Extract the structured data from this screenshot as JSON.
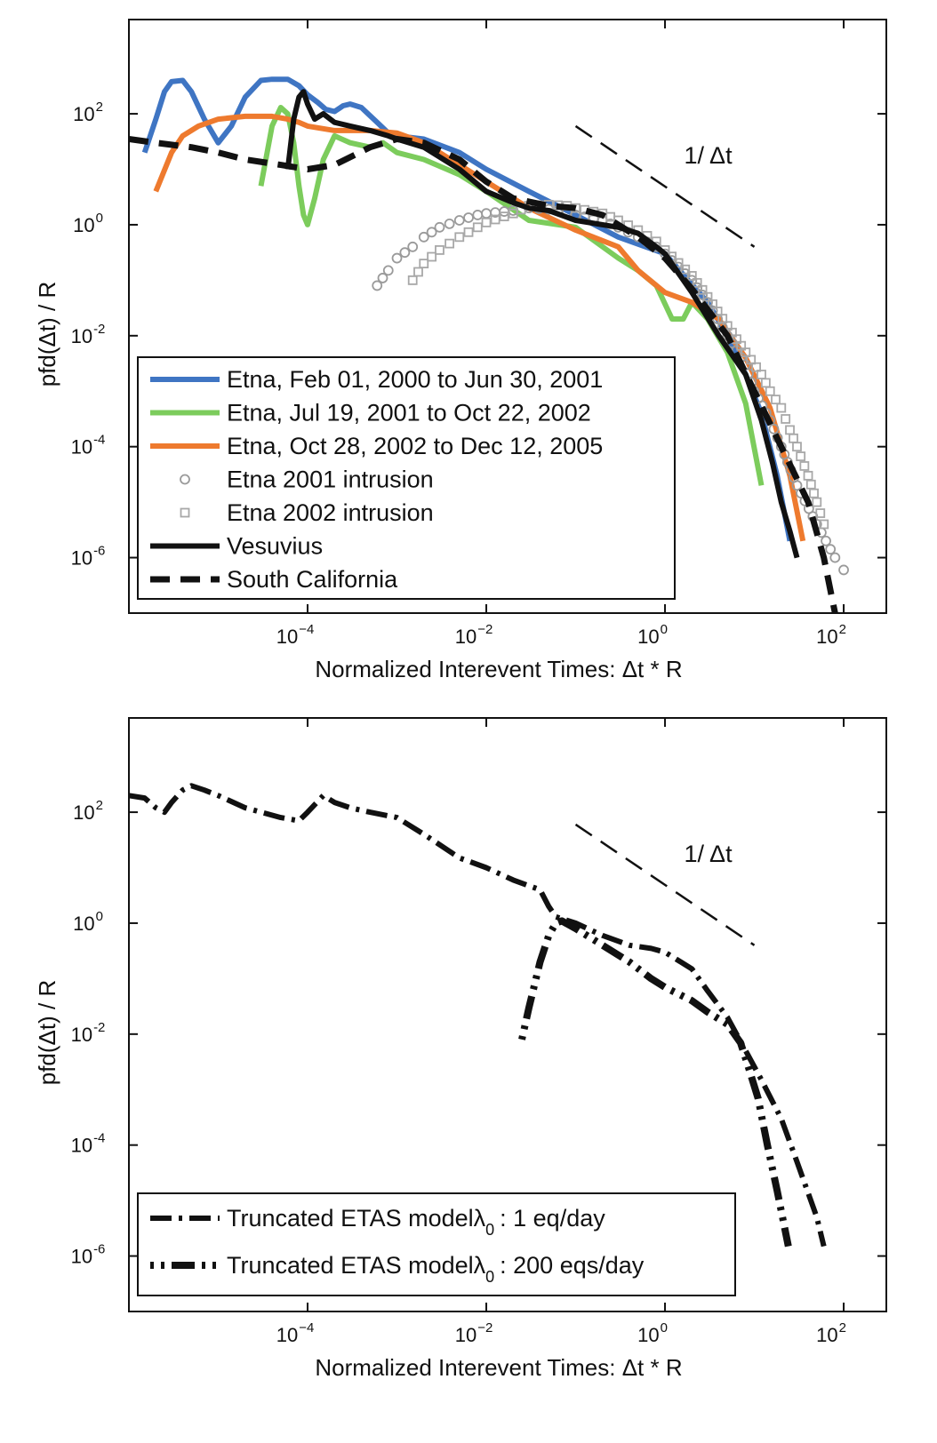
{
  "chart_data": [
    {
      "type": "line",
      "xscale": "log",
      "yscale": "log",
      "xlim": [
        1e-06,
        300
      ],
      "ylim": [
        1e-07,
        5000
      ],
      "xticks": [
        {
          "v": 0.0001,
          "base": "10",
          "exp": "−4"
        },
        {
          "v": 0.01,
          "base": "10",
          "exp": "−2"
        },
        {
          "v": 1,
          "base": "10",
          "exp": "0"
        },
        {
          "v": 100,
          "base": "10",
          "exp": "2"
        }
      ],
      "yticks": [
        {
          "v": 100,
          "base": "10",
          "exp": "2"
        },
        {
          "v": 1,
          "base": "10",
          "exp": "0"
        },
        {
          "v": 0.01,
          "base": "10",
          "exp": "-2"
        },
        {
          "v": 0.0001,
          "base": "10",
          "exp": "-4"
        },
        {
          "v": 1e-06,
          "base": "10",
          "exp": "-6"
        }
      ],
      "xlabel": "Normalized Interevent Times: Δt * R",
      "ylabel": "pfd(Δt) / R",
      "legend_position": "lower-left",
      "reference_line": {
        "label": "1/ Δt",
        "x": [
          0.1,
          10
        ],
        "y": [
          60,
          0.4
        ]
      },
      "series": [
        {
          "name": "Etna, Feb 01, 2000 to Jun 30, 2001",
          "color": "#3f75c3",
          "style": "solid",
          "width": 6,
          "x": [
            1.5e-06,
            2e-06,
            2.5e-06,
            3e-06,
            4e-06,
            5e-06,
            7e-06,
            1e-05,
            1.4e-05,
            2e-05,
            3e-05,
            4e-05,
            6e-05,
            8e-05,
            0.0001,
            0.00013,
            0.00016,
            0.0002,
            0.00025,
            0.0003,
            0.0004,
            0.0006,
            0.0008,
            0.001,
            0.002,
            0.005,
            0.01,
            0.03,
            0.1,
            0.3,
            1,
            3,
            5,
            8,
            12,
            18,
            25
          ],
          "y": [
            20,
            80,
            250,
            380,
            400,
            250,
            80,
            30,
            60,
            200,
            400,
            420,
            420,
            320,
            220,
            160,
            120,
            110,
            140,
            150,
            130,
            70,
            45,
            40,
            35,
            20,
            10,
            4,
            1.5,
            0.6,
            0.3,
            0.04,
            0.01,
            0.002,
            0.0004,
            3e-05,
            2e-06
          ]
        },
        {
          "name": "Etna, Jul 19, 2001 to Oct 22, 2002",
          "color": "#7ccc5c",
          "style": "solid",
          "width": 6,
          "x": [
            3e-05,
            4e-05,
            5e-05,
            6e-05,
            7e-05,
            8e-05,
            9e-05,
            0.0001,
            0.00012,
            0.00015,
            0.0002,
            0.0003,
            0.0005,
            0.0007,
            0.001,
            0.002,
            0.005,
            0.01,
            0.03,
            0.1,
            0.3,
            0.5,
            0.8,
            1.2,
            1.6,
            2,
            3,
            5,
            8,
            12
          ],
          "y": [
            5,
            60,
            130,
            100,
            30,
            5,
            1.5,
            1,
            3,
            15,
            40,
            30,
            25,
            30,
            20,
            15,
            8,
            4,
            1.2,
            0.9,
            0.25,
            0.15,
            0.08,
            0.02,
            0.02,
            0.04,
            0.02,
            0.005,
            0.0006,
            2e-05
          ]
        },
        {
          "name": "Etna, Oct 28, 2002 to Dec 12, 2005",
          "color": "#ee7a2e",
          "style": "solid",
          "width": 6,
          "x": [
            2e-06,
            3e-06,
            4e-06,
            6e-06,
            1e-05,
            2e-05,
            4e-05,
            6e-05,
            8e-05,
            0.0001,
            0.0002,
            0.0005,
            0.001,
            0.002,
            0.005,
            0.01,
            0.03,
            0.1,
            0.3,
            0.5,
            1,
            2,
            4,
            8,
            15,
            25,
            35
          ],
          "y": [
            4,
            20,
            40,
            60,
            80,
            90,
            90,
            80,
            70,
            60,
            50,
            50,
            45,
            30,
            12,
            6,
            2,
            0.8,
            0.4,
            0.15,
            0.06,
            0.04,
            0.02,
            0.004,
            0.0005,
            3e-05,
            2e-06
          ]
        },
        {
          "name": "Etna 2001 intrusion",
          "color": "#9a9a9a",
          "style": "circle",
          "x": [
            0.0006,
            0.0008,
            0.001,
            0.0015,
            0.002,
            0.003,
            0.005,
            0.008,
            0.01,
            0.02,
            0.03,
            0.05,
            0.08,
            0.1,
            0.2,
            0.3,
            0.5,
            0.8,
            1,
            2,
            3,
            5,
            8,
            10,
            15,
            20,
            30,
            50,
            80,
            100
          ],
          "y": [
            0.08,
            0.15,
            0.25,
            0.4,
            0.6,
            0.9,
            1.2,
            1.5,
            1.6,
            1.8,
            2,
            1.9,
            1.7,
            1.5,
            1.2,
            0.9,
            0.6,
            0.4,
            0.3,
            0.1,
            0.04,
            0.01,
            0.003,
            0.001,
            0.0003,
            0.0001,
            2e-05,
            4e-06,
            1e-06,
            6e-07
          ]
        },
        {
          "name": "Etna 2002 intrusion",
          "color": "#a8a8a8",
          "style": "square",
          "x": [
            0.0015,
            0.002,
            0.003,
            0.005,
            0.008,
            0.01,
            0.02,
            0.03,
            0.05,
            0.08,
            0.1,
            0.2,
            0.3,
            0.5,
            0.8,
            1,
            2,
            3,
            5,
            8,
            12,
            15,
            20,
            25,
            30,
            40,
            50,
            60
          ],
          "y": [
            0.1,
            0.2,
            0.35,
            0.6,
            0.9,
            1.1,
            1.6,
            2.2,
            2.3,
            2.2,
            2,
            1.6,
            1.2,
            0.8,
            0.5,
            0.35,
            0.12,
            0.05,
            0.015,
            0.005,
            0.002,
            0.001,
            0.0005,
            0.0002,
            0.0001,
            3e-05,
            1e-05,
            4e-06
          ]
        },
        {
          "name": "Vesuvius",
          "color": "#111111",
          "style": "solid",
          "width": 6,
          "x": [
            6e-05,
            7e-05,
            8e-05,
            9e-05,
            0.0001,
            0.00012,
            0.00015,
            0.0002,
            0.0003,
            0.0005,
            0.0008,
            0.001,
            0.002,
            0.005,
            0.01,
            0.02,
            0.03,
            0.05,
            0.1,
            0.2,
            0.3,
            0.5,
            0.8,
            1,
            2,
            4,
            8,
            12,
            16,
            20,
            25,
            30
          ],
          "y": [
            10,
            80,
            200,
            250,
            150,
            80,
            100,
            70,
            60,
            50,
            40,
            35,
            25,
            10,
            4,
            2.5,
            2,
            1.8,
            1.2,
            1,
            0.9,
            0.7,
            0.4,
            0.3,
            0.06,
            0.01,
            0.002,
            0.0003,
            5e-05,
            1e-05,
            3e-06,
            1e-06
          ]
        },
        {
          "name": "South California",
          "color": "#111111",
          "style": "dashed",
          "width": 7,
          "x": [
            1e-06,
            2e-06,
            5e-06,
            1e-05,
            2e-05,
            5e-05,
            0.0001,
            0.0002,
            0.0005,
            0.001,
            0.002,
            0.005,
            0.01,
            0.02,
            0.05,
            0.1,
            0.2,
            0.5,
            1,
            2,
            5,
            10,
            20,
            40,
            60,
            80
          ],
          "y": [
            35,
            30,
            25,
            20,
            15,
            12,
            10,
            12,
            25,
            35,
            30,
            15,
            6,
            3,
            2.2,
            2,
            1.5,
            0.6,
            0.25,
            0.07,
            0.01,
            0.001,
            0.0001,
            1e-05,
            1e-06,
            1e-07
          ]
        }
      ]
    },
    {
      "type": "line",
      "xscale": "log",
      "yscale": "log",
      "xlim": [
        1e-06,
        300
      ],
      "ylim": [
        1e-07,
        5000
      ],
      "xticks": [
        {
          "v": 0.0001,
          "base": "10",
          "exp": "−4"
        },
        {
          "v": 0.01,
          "base": "10",
          "exp": "−2"
        },
        {
          "v": 1,
          "base": "10",
          "exp": "0"
        },
        {
          "v": 100,
          "base": "10",
          "exp": "2"
        }
      ],
      "yticks": [
        {
          "v": 100,
          "base": "10",
          "exp": "2"
        },
        {
          "v": 1,
          "base": "10",
          "exp": "0"
        },
        {
          "v": 0.01,
          "base": "10",
          "exp": "-2"
        },
        {
          "v": 0.0001,
          "base": "10",
          "exp": "-4"
        },
        {
          "v": 1e-06,
          "base": "10",
          "exp": "-6"
        }
      ],
      "xlabel": "Normalized Interevent Times: Δt * R",
      "ylabel": "pfd(Δt) / R",
      "legend_position": "lower-left",
      "reference_line": {
        "label": "1/ Δt",
        "x": [
          0.1,
          10
        ],
        "y": [
          60,
          0.4
        ]
      },
      "series": [
        {
          "name": "Truncated ETAS model",
          "sub_label": "λ",
          "sub_index": "0",
          "rate": ": 1 eq/day",
          "color": "#111111",
          "style": "dashdot-a",
          "width": 6,
          "x": [
            1e-06,
            1.5e-06,
            2e-06,
            2.5e-06,
            3e-06,
            4e-06,
            5e-06,
            7e-06,
            1e-05,
            2e-05,
            5e-05,
            8e-05,
            0.0001,
            0.00015,
            0.0002,
            0.0003,
            0.0005,
            0.001,
            0.002,
            0.005,
            0.01,
            0.02,
            0.04,
            0.05,
            0.06,
            0.07,
            0.1,
            0.2,
            0.4,
            0.7,
            1,
            1.5,
            2,
            3,
            5,
            8,
            12,
            20,
            30,
            50,
            60
          ],
          "y": [
            200,
            180,
            120,
            100,
            150,
            250,
            300,
            250,
            200,
            120,
            80,
            70,
            100,
            200,
            150,
            120,
            100,
            80,
            40,
            15,
            10,
            6,
            4,
            2,
            1.3,
            1.2,
            1,
            0.6,
            0.4,
            0.35,
            0.3,
            0.2,
            0.15,
            0.06,
            0.02,
            0.005,
            0.0015,
            0.0003,
            5e-05,
            5e-06,
            1.5e-06
          ]
        },
        {
          "name": "Truncated ETAS model",
          "sub_label": "λ",
          "sub_index": "0",
          "rate": ": 200 eqs/day",
          "color": "#111111",
          "style": "dashdot-b",
          "width": 8,
          "x": [
            0.025,
            0.03,
            0.04,
            0.05,
            0.06,
            0.07,
            0.1,
            0.2,
            0.4,
            0.7,
            1,
            2,
            3,
            5,
            7,
            9,
            11,
            14,
            18,
            24
          ],
          "y": [
            0.008,
            0.03,
            0.2,
            0.6,
            1,
            1.1,
            0.8,
            0.4,
            0.2,
            0.1,
            0.07,
            0.04,
            0.025,
            0.015,
            0.007,
            0.002,
            0.0007,
            0.0001,
            1.5e-05,
            1.5e-06
          ]
        }
      ]
    }
  ]
}
